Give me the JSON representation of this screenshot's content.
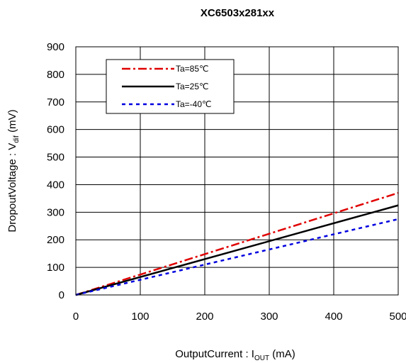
{
  "chart_data": {
    "type": "line",
    "title": "XC6503x281xx",
    "xlabel": {
      "prefix": "OutputCurrent : I",
      "sub": "OUT",
      "suffix": " (mA)"
    },
    "ylabel": {
      "prefix": "DropoutVoltage : V",
      "sub": "dif",
      "suffix": " (mV)"
    },
    "xlim": [
      0,
      500
    ],
    "ylim": [
      0,
      900
    ],
    "xticks": [
      0,
      100,
      200,
      300,
      400,
      500
    ],
    "yticks": [
      0,
      100,
      200,
      300,
      400,
      500,
      600,
      700,
      800,
      900
    ],
    "grid": true,
    "legend_position": "top-left",
    "series": [
      {
        "name": "Ta=85℃",
        "color": "#e00000",
        "dash": "dash-dot",
        "x": [
          0,
          500
        ],
        "y": [
          0,
          370
        ]
      },
      {
        "name": "Ta=25℃",
        "color": "#000000",
        "dash": "solid",
        "x": [
          0,
          500
        ],
        "y": [
          0,
          325
        ]
      },
      {
        "name": "Ta=-40℃",
        "color": "#0000e0",
        "dash": "dotted",
        "x": [
          0,
          500
        ],
        "y": [
          0,
          275
        ]
      }
    ]
  }
}
